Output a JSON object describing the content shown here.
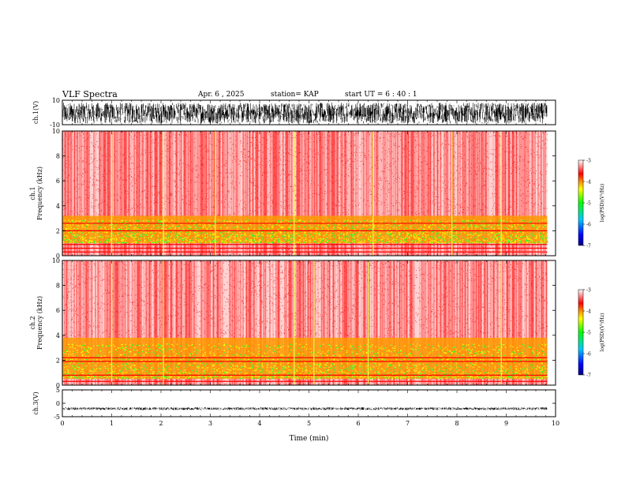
{
  "header": {
    "title": "VLF Spectra",
    "date": "Apr. 6 , 2025",
    "station": "station= KAP",
    "start": "start  UT =   6 : 40 : 1"
  },
  "chart_data": [
    {
      "type": "line",
      "name": "waveform-ch1",
      "ylabel": "ch.1(V)",
      "ylim": [
        -10,
        10
      ],
      "yticks": [
        "10",
        "-10"
      ],
      "xlim": [
        0,
        10
      ],
      "trace": {
        "mean": 0,
        "amplitude_range": [
          -9,
          8
        ],
        "color": "#000000",
        "end_min": 9.83
      }
    },
    {
      "type": "heatmap",
      "name": "spectrogram-ch1",
      "ylabel": "ch.1\nFrequency (kHz)",
      "ylim": [
        0,
        10
      ],
      "yticks": [
        "0",
        "2",
        "4",
        "6",
        "8",
        "10"
      ],
      "xlim": [
        0,
        10
      ],
      "data_end_min": 9.83,
      "band_kHz": {
        "strong": [
          1.0,
          3.2
        ],
        "lines": [
          0.3,
          0.6,
          0.9,
          2.0,
          2.6
        ]
      },
      "spike_minutes": [
        1.0,
        2.05,
        3.1,
        4.7,
        6.3,
        7.9,
        8.9
      ],
      "colorbar": {
        "label": "log(PSD)(V²/Hz)",
        "range": [
          -7,
          -3
        ],
        "ticks": [
          "-3",
          "-4",
          "-5",
          "-6",
          "-7"
        ]
      }
    },
    {
      "type": "heatmap",
      "name": "spectrogram-ch2",
      "ylabel": "ch.2\nFrequency (kHz)",
      "ylim": [
        0,
        10
      ],
      "yticks": [
        "0",
        "2",
        "4",
        "6",
        "8",
        "10"
      ],
      "xlim": [
        0,
        10
      ],
      "data_end_min": 9.83,
      "band_kHz": {
        "strong": [
          0.5,
          3.8
        ],
        "lines": [
          0.3,
          0.8,
          1.9,
          2.2
        ]
      },
      "spike_minutes": [
        1.0,
        2.05,
        4.7,
        5.1,
        6.2,
        8.9
      ],
      "colorbar": {
        "label": "log(PSD)(V²/Hz)",
        "range": [
          -7,
          -3
        ],
        "ticks": [
          "-3",
          "-4",
          "-5",
          "-6",
          "-7"
        ]
      }
    },
    {
      "type": "line",
      "name": "waveform-ch3",
      "ylabel": "ch.3(V)",
      "ylim": [
        -5,
        5
      ],
      "yticks": [
        "5",
        "0",
        "-5"
      ],
      "xlim": [
        0,
        10
      ],
      "xlabel": "Time (min)",
      "xticks": [
        "0",
        "1",
        "2",
        "3",
        "4",
        "5",
        "6",
        "7",
        "8",
        "9",
        "10"
      ],
      "trace": {
        "mean": -2,
        "amplitude_range": [
          -2.5,
          -1.5
        ],
        "color": "#000000",
        "end_min": 9.83
      }
    }
  ]
}
